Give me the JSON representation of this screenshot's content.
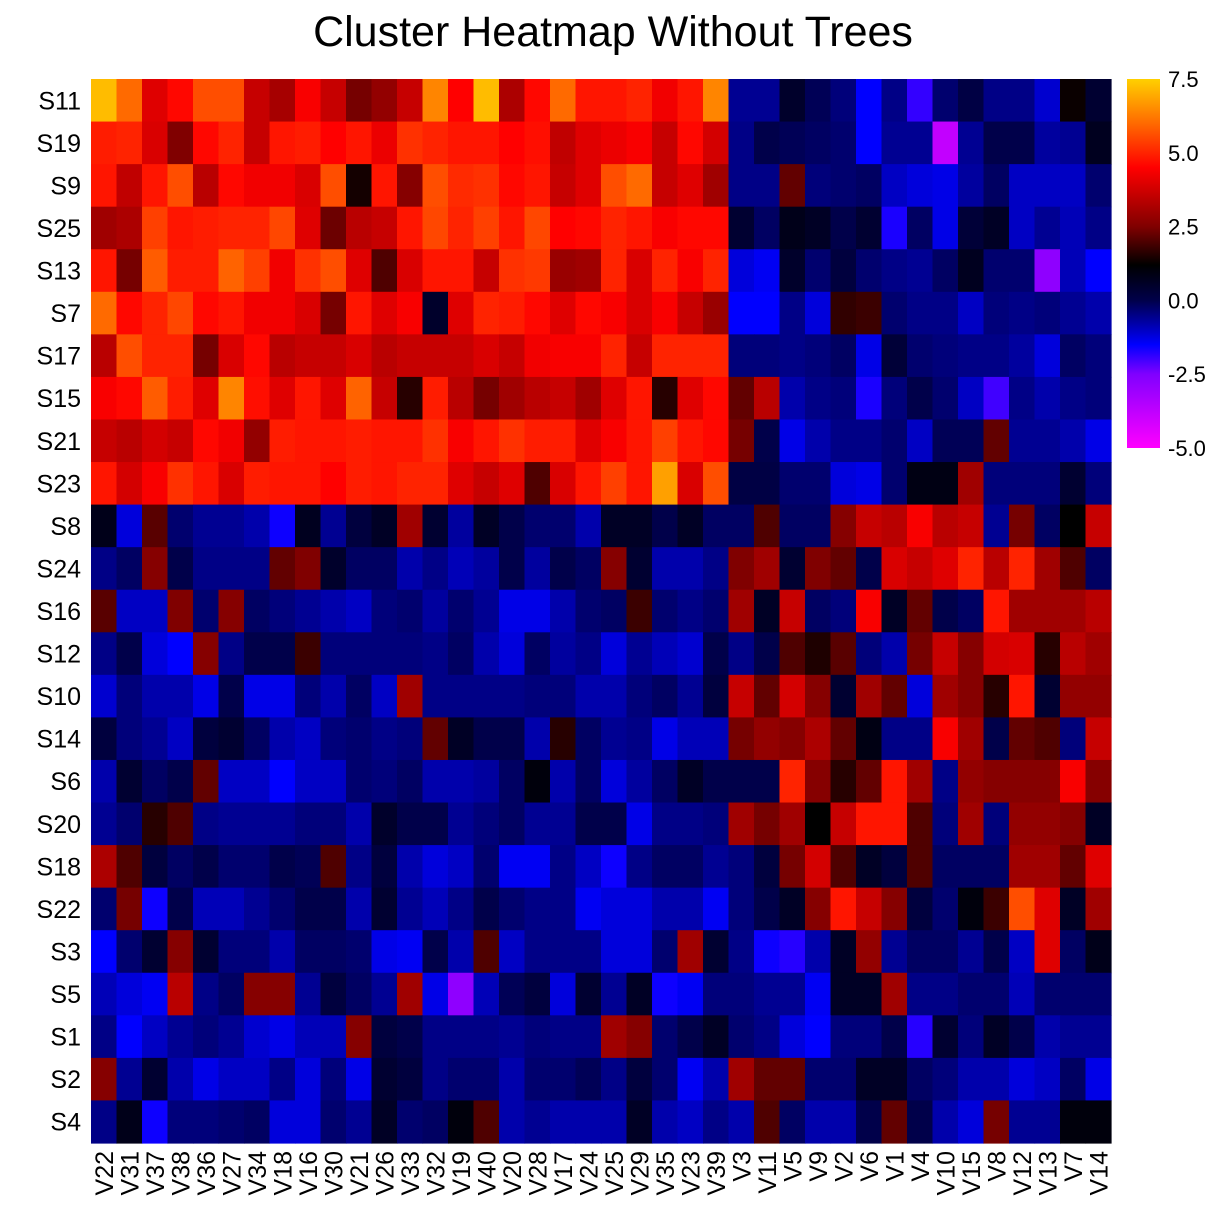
{
  "chart_data": {
    "type": "heatmap",
    "title": "Cluster Heatmap Without Trees",
    "rows": [
      "S11",
      "S19",
      "S9",
      "S25",
      "S13",
      "S7",
      "S17",
      "S15",
      "S21",
      "S23",
      "S8",
      "S24",
      "S16",
      "S12",
      "S10",
      "S14",
      "S6",
      "S20",
      "S18",
      "S22",
      "S3",
      "S5",
      "S1",
      "S2",
      "S4"
    ],
    "columns": [
      "V22",
      "V31",
      "V37",
      "V38",
      "V36",
      "V27",
      "V34",
      "V18",
      "V16",
      "V30",
      "V21",
      "V26",
      "V33",
      "V32",
      "V19",
      "V40",
      "V20",
      "V28",
      "V17",
      "V24",
      "V25",
      "V29",
      "V35",
      "V23",
      "V39",
      "V3",
      "V11",
      "V5",
      "V9",
      "V2",
      "V6",
      "V1",
      "V4",
      "V10",
      "V15",
      "V8",
      "V12",
      "V13",
      "V7",
      "V14"
    ],
    "values": [
      [
        7.2,
        6.0,
        4.0,
        4.6,
        5.6,
        5.6,
        3.6,
        3.1,
        4.4,
        3.6,
        2.4,
        2.8,
        3.6,
        6.4,
        4.5,
        7.2,
        3.2,
        4.6,
        6.0,
        4.8,
        4.8,
        5.0,
        4.3,
        4.8,
        6.4,
        -0.6,
        -0.6,
        0.5,
        -0.1,
        -0.4,
        -1.5,
        -0.5,
        -1.9,
        -0.3,
        0.1,
        -0.5,
        -0.5,
        -1.1,
        1.3,
        0.4
      ],
      [
        4.9,
        5.0,
        3.9,
        2.5,
        4.6,
        5.0,
        3.6,
        4.8,
        4.9,
        4.5,
        4.8,
        4.2,
        5.2,
        5.0,
        4.8,
        4.8,
        4.5,
        4.7,
        3.5,
        4.0,
        4.2,
        4.4,
        3.6,
        4.6,
        3.8,
        -0.5,
        0.0,
        -0.1,
        -0.2,
        -0.3,
        -1.5,
        -0.6,
        -0.6,
        -3.8,
        -0.6,
        0.0,
        0.0,
        -0.7,
        -0.6,
        0.7
      ],
      [
        4.8,
        3.5,
        4.8,
        5.6,
        3.4,
        4.6,
        4.3,
        4.3,
        3.9,
        5.6,
        1.4,
        4.8,
        2.6,
        5.6,
        5.1,
        5.2,
        4.6,
        4.8,
        3.6,
        4.0,
        5.6,
        6.0,
        3.6,
        4.0,
        3.0,
        -0.5,
        -0.5,
        2.2,
        -0.4,
        -0.3,
        -0.2,
        -1.0,
        -1.2,
        -1.3,
        -0.7,
        -0.2,
        -1.0,
        -1.0,
        -1.0,
        -0.3
      ],
      [
        3.0,
        3.2,
        5.4,
        4.8,
        4.9,
        5.0,
        5.0,
        5.5,
        4.0,
        2.3,
        3.4,
        3.6,
        4.8,
        5.5,
        5.0,
        5.4,
        4.8,
        5.5,
        4.5,
        4.6,
        5.0,
        4.8,
        4.4,
        4.6,
        4.6,
        0.4,
        -0.2,
        0.8,
        0.6,
        0.0,
        0.4,
        -1.7,
        -0.2,
        -1.3,
        0.3,
        0.6,
        -1.0,
        -0.6,
        -0.9,
        -0.5
      ],
      [
        4.8,
        2.4,
        5.8,
        4.9,
        4.9,
        5.9,
        5.4,
        4.3,
        5.2,
        5.6,
        4.0,
        2.0,
        3.9,
        4.8,
        4.8,
        3.6,
        5.2,
        5.3,
        2.9,
        3.0,
        5.0,
        3.9,
        5.0,
        4.4,
        5.0,
        -1.2,
        -1.4,
        0.5,
        -0.3,
        0.2,
        -0.3,
        -0.5,
        -0.6,
        -0.2,
        0.7,
        -0.3,
        -0.3,
        -2.8,
        -0.9,
        -1.5
      ],
      [
        6.0,
        4.6,
        5.0,
        5.5,
        4.6,
        4.8,
        4.3,
        4.3,
        3.9,
        2.4,
        4.8,
        4.0,
        4.4,
        0.5,
        4.0,
        5.0,
        4.9,
        4.6,
        4.0,
        4.6,
        4.4,
        3.9,
        4.4,
        3.6,
        2.9,
        -1.5,
        -1.5,
        -0.5,
        -1.2,
        1.7,
        1.8,
        -0.3,
        -0.5,
        -0.5,
        -1.0,
        -0.4,
        -0.5,
        -0.4,
        -0.6,
        -0.8
      ],
      [
        3.4,
        5.6,
        5.0,
        5.0,
        2.4,
        3.9,
        4.6,
        3.4,
        3.6,
        3.6,
        3.9,
        3.4,
        3.6,
        3.6,
        3.6,
        3.9,
        3.6,
        4.3,
        4.4,
        4.4,
        5.0,
        3.6,
        5.0,
        5.0,
        5.0,
        -0.4,
        -0.4,
        -0.5,
        -0.4,
        -0.2,
        -1.3,
        0.3,
        -0.3,
        -0.4,
        -0.5,
        -0.5,
        -0.7,
        -1.2,
        -0.2,
        -0.4
      ],
      [
        4.4,
        4.6,
        5.8,
        4.9,
        4.0,
        6.4,
        4.7,
        4.0,
        4.8,
        4.0,
        5.9,
        3.6,
        1.6,
        4.9,
        3.4,
        2.4,
        3.0,
        3.4,
        3.6,
        3.0,
        4.0,
        4.8,
        1.6,
        4.0,
        4.6,
        2.2,
        3.4,
        -0.8,
        -0.5,
        -0.4,
        -1.7,
        -0.4,
        0.0,
        -0.3,
        -1.0,
        -2.0,
        -0.5,
        -0.8,
        -0.5,
        -0.4
      ],
      [
        3.6,
        3.4,
        3.8,
        3.6,
        4.6,
        4.3,
        2.8,
        4.9,
        4.8,
        4.8,
        4.9,
        4.8,
        4.8,
        5.2,
        4.4,
        4.8,
        5.2,
        4.9,
        4.9,
        4.0,
        4.4,
        4.8,
        5.4,
        4.8,
        4.6,
        2.4,
        0.0,
        -1.3,
        -0.8,
        -0.5,
        -0.5,
        -0.3,
        -1.0,
        -0.1,
        -0.1,
        2.2,
        -0.6,
        -0.6,
        -0.8,
        -1.3
      ],
      [
        4.8,
        3.8,
        4.4,
        5.2,
        4.8,
        3.9,
        4.9,
        4.8,
        4.8,
        4.5,
        4.9,
        4.8,
        5.0,
        5.0,
        4.0,
        3.6,
        4.0,
        2.0,
        3.9,
        4.8,
        5.4,
        4.8,
        6.8,
        3.9,
        5.6,
        0.1,
        0.1,
        -0.3,
        -0.3,
        -1.2,
        -1.3,
        -0.3,
        0.9,
        0.9,
        3.0,
        -0.4,
        -0.4,
        -0.4,
        0.4,
        -0.4
      ],
      [
        0.8,
        -1.2,
        2.1,
        -0.3,
        -0.6,
        -0.6,
        -0.8,
        -1.6,
        0.7,
        -0.6,
        0.2,
        0.6,
        3.0,
        0.4,
        -0.7,
        0.6,
        0.0,
        -0.3,
        -0.3,
        -0.8,
        0.6,
        0.6,
        0.0,
        0.6,
        -0.2,
        -0.2,
        2.0,
        -0.2,
        -0.2,
        2.6,
        3.6,
        3.4,
        4.4,
        3.4,
        3.6,
        -0.6,
        2.4,
        -0.2,
        1.2,
        3.6
      ],
      [
        -0.5,
        -0.2,
        2.6,
        0.0,
        -0.5,
        -0.5,
        -0.5,
        2.2,
        2.5,
        0.5,
        -0.2,
        -0.2,
        -0.8,
        -0.5,
        -0.9,
        -0.7,
        0.0,
        -0.7,
        0.0,
        -0.2,
        2.6,
        0.4,
        -0.8,
        -0.8,
        -0.5,
        2.5,
        3.0,
        0.4,
        2.5,
        2.2,
        0.0,
        3.9,
        3.6,
        4.0,
        5.0,
        3.4,
        5.0,
        3.0,
        2.0,
        -0.2
      ],
      [
        2.1,
        -1.0,
        -1.0,
        2.5,
        -0.3,
        2.6,
        -0.2,
        -0.4,
        -0.6,
        -0.8,
        -1.0,
        -0.4,
        -0.3,
        -0.7,
        -0.3,
        -0.6,
        -1.3,
        -1.3,
        -0.8,
        -0.3,
        -0.2,
        1.8,
        -0.3,
        -0.5,
        -0.3,
        3.0,
        0.6,
        3.6,
        -0.2,
        -0.4,
        4.4,
        0.6,
        2.2,
        0.0,
        -0.2,
        4.8,
        3.0,
        3.0,
        3.0,
        3.4
      ],
      [
        -0.5,
        0.0,
        -1.2,
        -1.5,
        2.6,
        -0.5,
        0.0,
        0.0,
        1.8,
        -0.4,
        -0.4,
        -0.4,
        -0.4,
        -0.5,
        -0.2,
        -0.8,
        -1.2,
        -0.2,
        -0.7,
        -0.5,
        -1.2,
        -0.6,
        -0.9,
        -1.1,
        0.0,
        -0.5,
        0.0,
        2.0,
        1.5,
        2.1,
        -0.4,
        -0.8,
        2.4,
        3.6,
        2.6,
        3.8,
        3.9,
        1.6,
        3.4,
        3.0
      ],
      [
        -1.1,
        -0.4,
        -0.8,
        -0.8,
        -1.3,
        0.0,
        -1.3,
        -1.3,
        -0.4,
        -0.8,
        -0.2,
        -1.0,
        3.0,
        -0.5,
        -0.5,
        -0.5,
        -0.5,
        -0.4,
        -0.4,
        -0.8,
        -0.8,
        -0.4,
        -0.2,
        -0.6,
        0.2,
        3.6,
        2.2,
        3.8,
        2.6,
        0.4,
        3.0,
        2.2,
        -1.2,
        3.0,
        2.6,
        1.6,
        4.8,
        0.4,
        2.8,
        2.8
      ],
      [
        0.2,
        -0.4,
        -0.6,
        -1.0,
        0.2,
        0.4,
        -0.2,
        -0.8,
        -1.0,
        -0.4,
        -0.3,
        -0.5,
        -0.4,
        2.2,
        0.6,
        0.0,
        0.0,
        -0.8,
        1.6,
        -0.2,
        -0.6,
        -0.5,
        -1.3,
        -0.9,
        -0.9,
        2.4,
        2.8,
        2.6,
        3.2,
        2.2,
        0.9,
        -0.5,
        -0.5,
        4.4,
        3.0,
        0.0,
        2.2,
        2.0,
        -0.4,
        3.6
      ],
      [
        -0.8,
        0.4,
        -0.2,
        0.0,
        2.2,
        -1.0,
        -1.0,
        -1.5,
        -1.0,
        -1.0,
        -0.3,
        -0.4,
        -0.2,
        -0.8,
        -0.8,
        -0.7,
        -0.2,
        1.0,
        -0.8,
        -0.2,
        -1.2,
        -0.7,
        -0.2,
        0.6,
        0.0,
        0.0,
        0.0,
        5.0,
        2.6,
        1.6,
        2.2,
        4.8,
        3.0,
        -0.5,
        2.8,
        2.6,
        2.6,
        2.6,
        4.4,
        2.6
      ],
      [
        -0.6,
        -0.3,
        1.6,
        2.0,
        -0.5,
        -0.6,
        -0.6,
        -0.6,
        -0.4,
        -0.4,
        -0.8,
        0.5,
        0.0,
        0.0,
        -0.6,
        -0.4,
        -0.2,
        -0.6,
        -0.6,
        0.0,
        0.0,
        -1.3,
        -0.5,
        -0.5,
        -0.4,
        3.0,
        2.4,
        3.0,
        1.2,
        3.6,
        4.8,
        4.8,
        2.0,
        -0.4,
        3.0,
        -0.4,
        2.8,
        2.8,
        2.6,
        0.6
      ],
      [
        3.2,
        2.0,
        0.2,
        -0.2,
        0.0,
        -0.3,
        -0.3,
        0.0,
        -0.1,
        2.0,
        -0.5,
        0.2,
        -0.8,
        -1.2,
        -1.0,
        -0.3,
        -1.4,
        -1.4,
        -0.5,
        -1.0,
        -1.6,
        -0.5,
        -0.2,
        -0.2,
        -0.6,
        -0.4,
        0.2,
        2.4,
        3.8,
        2.0,
        0.6,
        0.2,
        2.0,
        -0.2,
        -0.2,
        -0.2,
        3.0,
        3.0,
        2.2,
        4.0
      ],
      [
        -0.3,
        2.4,
        -1.6,
        0.0,
        -0.9,
        -0.9,
        -0.6,
        -0.3,
        0.0,
        0.0,
        -0.8,
        0.4,
        -0.6,
        -0.9,
        -0.5,
        0.0,
        -0.3,
        -0.5,
        -0.5,
        -1.4,
        -1.2,
        -1.2,
        -0.8,
        -0.8,
        -1.4,
        -0.4,
        0.0,
        0.6,
        2.6,
        4.8,
        3.6,
        2.6,
        0.2,
        -0.3,
        1.0,
        1.8,
        5.6,
        4.0,
        0.6,
        3.0
      ],
      [
        -1.5,
        -0.3,
        0.4,
        2.6,
        0.4,
        -0.4,
        -0.4,
        -0.8,
        -0.2,
        -0.2,
        -0.3,
        -1.3,
        -1.4,
        0.0,
        -0.8,
        2.0,
        -1.0,
        -0.5,
        -0.5,
        -0.5,
        -1.2,
        -1.2,
        -0.3,
        3.0,
        0.4,
        -0.5,
        -1.6,
        -1.8,
        -0.8,
        0.6,
        2.8,
        -0.6,
        -0.2,
        -0.2,
        -0.6,
        0.0,
        -1.0,
        4.0,
        -0.2,
        0.8
      ],
      [
        -0.9,
        -1.2,
        -1.4,
        3.4,
        -0.5,
        -0.2,
        2.6,
        2.6,
        -0.6,
        0.2,
        -0.2,
        -0.6,
        3.0,
        -1.3,
        -2.8,
        -0.9,
        -0.1,
        0.2,
        -1.2,
        0.4,
        -0.6,
        0.6,
        -1.6,
        -1.4,
        -0.4,
        -0.4,
        -0.6,
        -0.6,
        -1.4,
        0.6,
        0.6,
        3.0,
        -0.5,
        -0.5,
        -0.3,
        -0.3,
        -0.9,
        -0.3,
        -0.3,
        -0.3
      ],
      [
        -0.5,
        -1.5,
        -1.0,
        -0.6,
        -0.4,
        -0.6,
        -1.1,
        -1.3,
        -0.9,
        -0.9,
        2.6,
        0.2,
        0.0,
        -0.5,
        -0.5,
        -0.5,
        -0.6,
        -0.4,
        -0.5,
        -0.5,
        3.0,
        2.6,
        -0.3,
        0.0,
        0.6,
        -0.3,
        -0.5,
        -1.2,
        -1.5,
        -0.4,
        -0.4,
        0.0,
        -1.8,
        0.4,
        -0.4,
        0.6,
        0.0,
        -0.8,
        -0.6,
        -0.6
      ],
      [
        2.6,
        -0.6,
        0.4,
        -0.8,
        -1.3,
        -1.0,
        -1.0,
        -0.5,
        -1.2,
        -0.4,
        -1.3,
        0.4,
        0.2,
        -0.5,
        -0.3,
        -0.3,
        -0.8,
        -0.3,
        -0.3,
        -0.1,
        -0.5,
        0.2,
        -0.3,
        -1.4,
        -0.8,
        3.0,
        2.2,
        2.2,
        -0.3,
        -0.3,
        0.6,
        0.6,
        -0.2,
        -0.4,
        -0.8,
        -0.8,
        -1.2,
        -1.0,
        -0.2,
        -1.3
      ],
      [
        -0.5,
        0.8,
        -1.6,
        -0.4,
        -0.4,
        -0.3,
        -0.2,
        -1.2,
        -1.2,
        -0.3,
        -0.6,
        0.6,
        -0.3,
        -0.2,
        1.0,
        2.0,
        -0.8,
        -0.6,
        -0.8,
        -0.8,
        -0.8,
        0.6,
        -0.8,
        -1.0,
        -0.5,
        -0.8,
        2.0,
        -0.2,
        -0.8,
        -0.8,
        0.0,
        2.2,
        0.0,
        -0.8,
        -1.2,
        2.4,
        -0.6,
        -0.6,
        1.0,
        1.0
      ]
    ],
    "legend": {
      "ticks": [
        "7.5",
        "5.0",
        "2.5",
        "0.0",
        "-2.5",
        "-5.0"
      ],
      "range": [
        -5.0,
        7.5
      ],
      "placement": "right"
    },
    "color_stops": [
      {
        "v": -5.0,
        "c": "#ff00ff"
      },
      {
        "v": -2.5,
        "c": "#8000ff"
      },
      {
        "v": -1.5,
        "c": "#0000ff"
      },
      {
        "v": 0.0,
        "c": "#00004a"
      },
      {
        "v": 1.2,
        "c": "#000000"
      },
      {
        "v": 2.5,
        "c": "#800000"
      },
      {
        "v": 4.5,
        "c": "#ff0000"
      },
      {
        "v": 6.0,
        "c": "#ff6a00"
      },
      {
        "v": 7.5,
        "c": "#ffd000"
      }
    ]
  }
}
